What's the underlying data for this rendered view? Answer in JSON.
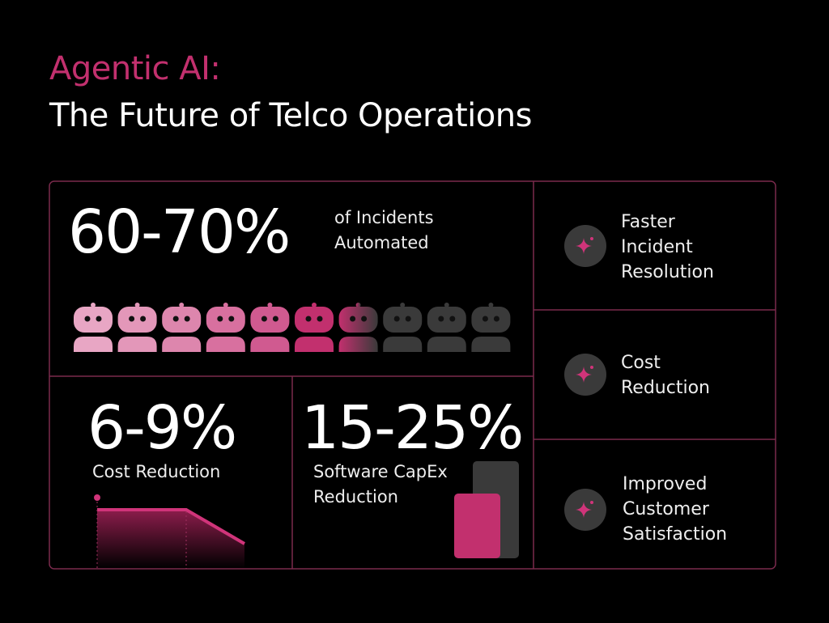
{
  "header": {
    "title_accent": "Agentic AI:",
    "title": "The Future of Telco Operations"
  },
  "stats": [
    {
      "value": "60-70%",
      "caption": [
        "of Incidents",
        "Automated"
      ]
    },
    {
      "value": "6-9%",
      "caption": [
        "Cost Reduction"
      ]
    },
    {
      "value": "15-25%",
      "caption": [
        "Software CapEx",
        "Reduction"
      ]
    }
  ],
  "benefits": [
    {
      "label": [
        "Faster",
        "Incident",
        "Resolution"
      ]
    },
    {
      "label": [
        "Cost",
        "Reduction"
      ]
    },
    {
      "label": [
        "Improved",
        "Customer",
        "Satisfaction"
      ]
    }
  ]
}
